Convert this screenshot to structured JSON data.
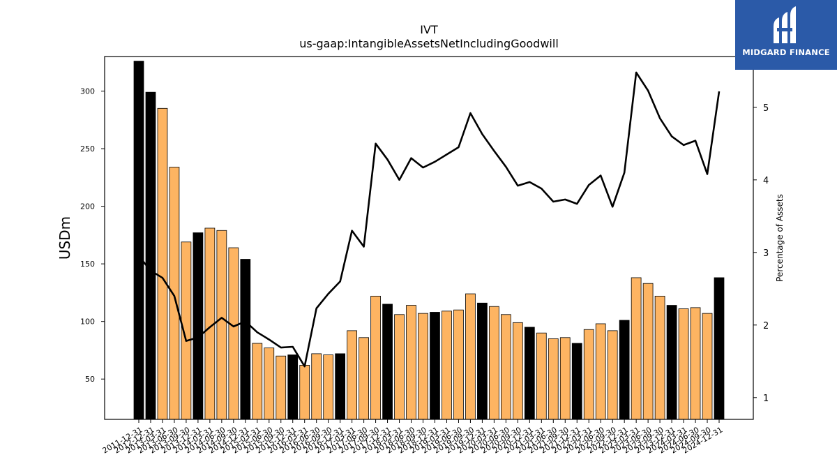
{
  "brand": {
    "name": "MIDGARD FINANCE",
    "bg": "#2b5aa8"
  },
  "chart_data": {
    "type": "bar",
    "title": "IVT",
    "subtitle": "us-gaap:IntangibleAssetsNetIncludingGoodwill",
    "ylabel": "USDm",
    "y2label": "Percentage of Assets",
    "ylim": [
      15,
      330
    ],
    "y2lim": [
      0.7,
      5.7
    ],
    "yticks": [
      50,
      100,
      150,
      200,
      250,
      300
    ],
    "y2ticks": [
      1,
      2,
      3,
      4,
      5
    ],
    "grid": false,
    "colors": {
      "annual": "#000000",
      "quarter": "#fdb462",
      "line": "#000000"
    },
    "categories": [
      "2011-12-31",
      "2012-12-31",
      "2013-03-31",
      "2013-06-30",
      "2013-09-30",
      "2013-12-31",
      "2014-03-31",
      "2014-06-30",
      "2014-09-30",
      "2014-12-31",
      "2015-03-31",
      "2015-06-30",
      "2015-09-30",
      "2015-12-31",
      "2016-03-31",
      "2016-06-30",
      "2016-09-30",
      "2016-12-31",
      "2017-03-31",
      "2017-06-30",
      "2017-09-30",
      "2017-12-31",
      "2018-03-31",
      "2018-06-30",
      "2018-09-30",
      "2018-12-31",
      "2019-03-31",
      "2019-06-30",
      "2019-09-30",
      "2019-12-31",
      "2020-03-31",
      "2020-06-30",
      "2020-09-30",
      "2020-12-31",
      "2021-03-31",
      "2021-06-30",
      "2021-09-30",
      "2021-12-31",
      "2022-03-31",
      "2022-06-30",
      "2022-09-30",
      "2022-12-31",
      "2023-03-31",
      "2023-06-30",
      "2023-09-30",
      "2023-12-31",
      "2024-03-31",
      "2024-06-30",
      "2024-09-30",
      "2024-12-31"
    ],
    "annual": [
      true,
      true,
      false,
      false,
      false,
      true,
      false,
      false,
      false,
      true,
      false,
      false,
      false,
      true,
      false,
      false,
      false,
      true,
      false,
      false,
      false,
      true,
      false,
      false,
      false,
      true,
      false,
      false,
      false,
      true,
      false,
      false,
      false,
      true,
      false,
      false,
      false,
      true,
      false,
      false,
      false,
      true,
      false,
      false,
      false,
      true,
      false,
      false,
      false,
      true
    ],
    "series": [
      {
        "name": "USDm",
        "values": [
          326,
          299,
          285,
          234,
          169,
          177,
          181,
          179,
          164,
          154,
          81,
          77,
          70,
          71,
          62,
          72,
          71,
          72,
          92,
          86,
          122,
          115,
          106,
          114,
          107,
          108,
          109,
          110,
          124,
          116,
          113,
          106,
          99,
          95,
          90,
          85,
          86,
          81,
          93,
          98,
          92,
          101,
          138,
          133,
          122,
          114,
          111,
          112,
          107,
          138
        ]
      },
      {
        "name": "Percentage of Assets",
        "values": [
          2.95,
          2.75,
          2.65,
          2.4,
          1.78,
          1.83,
          1.97,
          2.1,
          1.98,
          2.05,
          1.9,
          1.8,
          1.69,
          1.7,
          1.43,
          2.23,
          2.43,
          2.6,
          3.3,
          3.08,
          4.5,
          4.28,
          4.0,
          4.3,
          4.17,
          4.25,
          4.35,
          4.45,
          4.92,
          4.63,
          4.4,
          4.18,
          3.92,
          3.97,
          3.88,
          3.7,
          3.73,
          3.67,
          3.93,
          4.06,
          3.63,
          4.1,
          5.48,
          5.23,
          4.85,
          4.6,
          4.48,
          4.54,
          4.08,
          5.22
        ]
      }
    ]
  }
}
